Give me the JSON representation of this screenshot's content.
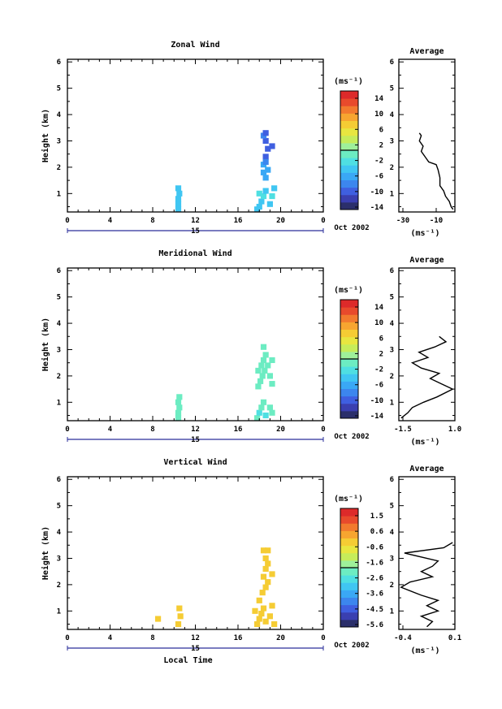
{
  "colorbar_colors": [
    "#2b2f6b",
    "#3a3fb0",
    "#3f5fe0",
    "#3c86ee",
    "#3aa8f5",
    "#40c6f2",
    "#4fdfe2",
    "#6cecc2",
    "#9ef09a",
    "#c6ec5a",
    "#e8e640",
    "#f5cc34",
    "#f7a530",
    "#f27a2e",
    "#e84a2c",
    "#dd2a2a"
  ],
  "wind_colors": {
    "zonal_dark": "#3a3fb0",
    "zonal_mid": "#3f66e8",
    "zonal_light": "#3aa8f5",
    "zonal_cyan": "#4fd0ea",
    "merid_cyan": "#4fdfe2",
    "merid_light": "#7ee8d8",
    "vert_yellow": "#f0e838",
    "vert_orange": "#f5c534",
    "vert_lime": "#d8ee4a"
  },
  "panels": [
    {
      "title": "Zonal Wind",
      "ylabel": "Height (km)",
      "xlabel": "",
      "yticks": [
        "1",
        "2",
        "3",
        "4",
        "5",
        "6"
      ],
      "xticks": [
        "0",
        "4",
        "8",
        "12",
        "16",
        "20",
        "0"
      ],
      "date_day": "15",
      "date_month": "Oct 2002",
      "cbar_unit": "(ms⁻¹)",
      "cbar_ticks": [
        "14",
        "10",
        "6",
        "2",
        "-2",
        "-6",
        "-10",
        "-14"
      ],
      "avg_title": "Average",
      "avg_xticks": [
        "-30",
        "-10"
      ],
      "avg_unit": "(ms⁻¹)"
    },
    {
      "title": "Meridional Wind",
      "ylabel": "Height (km)",
      "xlabel": "",
      "yticks": [
        "1",
        "2",
        "3",
        "4",
        "5",
        "6"
      ],
      "xticks": [
        "0",
        "4",
        "8",
        "12",
        "16",
        "20",
        "0"
      ],
      "date_day": "15",
      "date_month": "Oct 2002",
      "cbar_unit": "(ms⁻¹)",
      "cbar_ticks": [
        "14",
        "10",
        "6",
        "2",
        "-2",
        "-6",
        "-10",
        "-14"
      ],
      "avg_title": "Average",
      "avg_xticks": [
        "-1.5",
        "1.0"
      ],
      "avg_unit": "(ms⁻¹)"
    },
    {
      "title": "Vertical Wind",
      "ylabel": "Height (km)",
      "xlabel": "Local Time",
      "yticks": [
        "1",
        "2",
        "3",
        "4",
        "5",
        "6"
      ],
      "xticks": [
        "0",
        "4",
        "8",
        "12",
        "16",
        "20",
        "0"
      ],
      "date_day": "15",
      "date_month": "Oct 2002",
      "cbar_unit": "(ms⁻¹)",
      "cbar_ticks": [
        "1.5",
        "0.6",
        "-0.6",
        "-1.6",
        "-2.6",
        "-3.6",
        "-4.5",
        "-5.6"
      ],
      "avg_title": "Average",
      "avg_xticks": [
        "-0.4",
        "0.1"
      ],
      "avg_unit": "(ms⁻¹)"
    }
  ],
  "chart_data": [
    {
      "type": "heatmap",
      "title": "Zonal Wind",
      "xlabel": "",
      "ylabel": "Height (km)",
      "xlim": [
        0,
        24
      ],
      "ylim": [
        0.3,
        6.1
      ],
      "clim": [
        -16,
        16
      ],
      "cells": [
        [
          10.4,
          0.4,
          -6
        ],
        [
          10.4,
          0.6,
          -6
        ],
        [
          10.4,
          0.8,
          -5
        ],
        [
          10.5,
          1.0,
          -6
        ],
        [
          10.4,
          1.2,
          -5
        ],
        [
          17.8,
          0.4,
          -5
        ],
        [
          18.0,
          0.5,
          -6
        ],
        [
          18.2,
          0.7,
          -5
        ],
        [
          18.4,
          0.9,
          -4
        ],
        [
          18.6,
          1.1,
          -5
        ],
        [
          19.0,
          0.6,
          -6
        ],
        [
          19.2,
          0.9,
          -4
        ],
        [
          19.4,
          1.2,
          -5
        ],
        [
          18.0,
          1.0,
          -4
        ],
        [
          18.6,
          1.6,
          -7
        ],
        [
          18.8,
          1.9,
          -8
        ],
        [
          18.4,
          2.1,
          -7
        ],
        [
          18.6,
          2.4,
          -11
        ],
        [
          18.8,
          2.7,
          -12
        ],
        [
          19.2,
          2.8,
          -12
        ],
        [
          18.6,
          3.0,
          -11
        ],
        [
          18.4,
          3.2,
          -10
        ],
        [
          18.6,
          3.3,
          -11
        ],
        [
          18.4,
          1.8,
          -8
        ],
        [
          18.6,
          2.2,
          -9
        ]
      ],
      "average": {
        "x_range": [
          -30,
          0
        ],
        "points": [
          [
            -1,
            0.4
          ],
          [
            -2,
            0.5
          ],
          [
            -3,
            0.7
          ],
          [
            -5,
            0.9
          ],
          [
            -6,
            1.1
          ],
          [
            -8,
            1.3
          ],
          [
            -8,
            1.6
          ],
          [
            -9,
            1.9
          ],
          [
            -10,
            2.1
          ],
          [
            -14,
            2.2
          ],
          [
            -16,
            2.4
          ],
          [
            -18,
            2.6
          ],
          [
            -17,
            2.8
          ],
          [
            -19,
            3.0
          ],
          [
            -18,
            3.2
          ],
          [
            -19,
            3.3
          ]
        ]
      }
    },
    {
      "type": "heatmap",
      "title": "Meridional Wind",
      "xlabel": "",
      "ylabel": "Height (km)",
      "xlim": [
        0,
        24
      ],
      "ylim": [
        0.3,
        6.1
      ],
      "clim": [
        -16,
        16
      ],
      "cells": [
        [
          10.4,
          0.4,
          -2
        ],
        [
          10.4,
          0.6,
          -2
        ],
        [
          10.5,
          0.8,
          -2
        ],
        [
          10.4,
          1.0,
          -2
        ],
        [
          10.5,
          1.2,
          -2
        ],
        [
          17.8,
          0.4,
          -2
        ],
        [
          18.0,
          0.6,
          -3
        ],
        [
          18.2,
          0.8,
          -2
        ],
        [
          18.4,
          1.0,
          -1
        ],
        [
          18.6,
          0.5,
          -3
        ],
        [
          19.0,
          0.8,
          -2
        ],
        [
          19.2,
          0.6,
          -2
        ],
        [
          17.9,
          1.6,
          -2
        ],
        [
          18.1,
          1.8,
          -1
        ],
        [
          18.3,
          2.0,
          -2
        ],
        [
          18.5,
          2.2,
          -1
        ],
        [
          18.8,
          2.4,
          -1
        ],
        [
          19.0,
          2.0,
          -2
        ],
        [
          19.2,
          1.7,
          -2
        ],
        [
          18.4,
          2.6,
          -2
        ],
        [
          18.6,
          2.8,
          -1
        ],
        [
          18.4,
          3.1,
          -2
        ],
        [
          18.2,
          2.4,
          -2
        ],
        [
          17.9,
          2.2,
          -2
        ],
        [
          19.2,
          2.6,
          -1
        ]
      ],
      "average": {
        "x_range": [
          -1.5,
          1.0
        ],
        "points": [
          [
            -1.4,
            0.4
          ],
          [
            -1.1,
            0.6
          ],
          [
            -0.9,
            0.8
          ],
          [
            -0.4,
            1.0
          ],
          [
            0.2,
            1.2
          ],
          [
            0.9,
            1.5
          ],
          [
            0.4,
            1.7
          ],
          [
            -0.1,
            1.9
          ],
          [
            0.3,
            2.1
          ],
          [
            -0.5,
            2.3
          ],
          [
            -0.9,
            2.5
          ],
          [
            -0.2,
            2.7
          ],
          [
            -0.6,
            2.9
          ],
          [
            0.1,
            3.1
          ],
          [
            0.6,
            3.3
          ],
          [
            0.3,
            3.5
          ]
        ]
      }
    },
    {
      "type": "heatmap",
      "title": "Vertical Wind",
      "xlabel": "Local Time",
      "ylabel": "Height (km)",
      "xlim": [
        0,
        24
      ],
      "ylim": [
        0.3,
        6.1
      ],
      "clim": [
        -6,
        2
      ],
      "cells": [
        [
          8.5,
          0.7,
          -0.2
        ],
        [
          10.4,
          0.5,
          -0.1
        ],
        [
          10.6,
          0.8,
          -0.2
        ],
        [
          10.5,
          1.1,
          -0.1
        ],
        [
          17.8,
          0.5,
          -0.4
        ],
        [
          18.0,
          0.7,
          -0.2
        ],
        [
          18.2,
          0.9,
          -0.1
        ],
        [
          18.4,
          1.1,
          -0.2
        ],
        [
          18.6,
          0.6,
          -0.4
        ],
        [
          19.0,
          0.8,
          -0.2
        ],
        [
          19.2,
          1.2,
          -0.1
        ],
        [
          18.0,
          1.4,
          -0.2
        ],
        [
          18.3,
          1.7,
          -0.1
        ],
        [
          18.6,
          1.9,
          -0.2
        ],
        [
          18.8,
          2.1,
          -0.1
        ],
        [
          18.4,
          2.3,
          -0.2
        ],
        [
          18.6,
          2.6,
          -0.1
        ],
        [
          18.8,
          2.8,
          -0.2
        ],
        [
          19.2,
          2.4,
          -0.1
        ],
        [
          18.6,
          3.0,
          -0.1
        ],
        [
          18.4,
          3.3,
          -0.2
        ],
        [
          18.8,
          3.3,
          -0.1
        ],
        [
          19.4,
          0.5,
          -0.2
        ],
        [
          17.6,
          1.0,
          -0.3
        ]
      ],
      "average": {
        "x_range": [
          -0.4,
          0.1
        ],
        "points": [
          [
            -0.15,
            0.4
          ],
          [
            -0.1,
            0.6
          ],
          [
            -0.2,
            0.8
          ],
          [
            -0.05,
            1.0
          ],
          [
            -0.15,
            1.2
          ],
          [
            -0.05,
            1.4
          ],
          [
            -0.2,
            1.6
          ],
          [
            -0.38,
            1.9
          ],
          [
            -0.3,
            2.1
          ],
          [
            -0.1,
            2.3
          ],
          [
            -0.2,
            2.5
          ],
          [
            -0.1,
            2.7
          ],
          [
            -0.05,
            2.9
          ],
          [
            -0.35,
            3.2
          ],
          [
            0.0,
            3.4
          ],
          [
            0.08,
            3.6
          ]
        ]
      }
    }
  ]
}
